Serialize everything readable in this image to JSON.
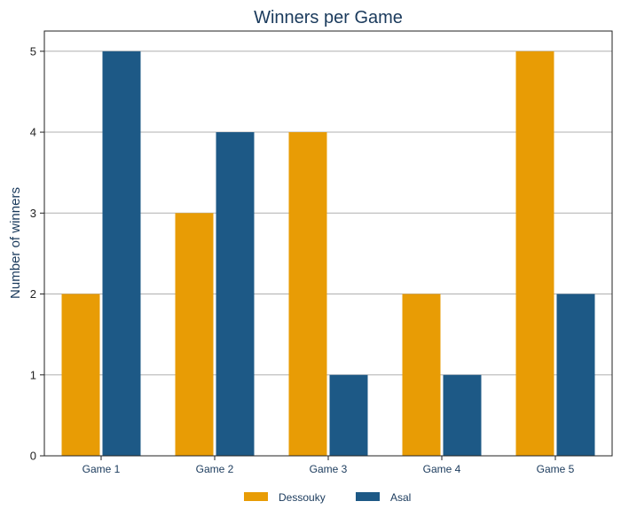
{
  "chart_data": {
    "type": "bar",
    "title": "Winners per Game",
    "xlabel": "",
    "ylabel": "Number of winners",
    "categories": [
      "Game 1",
      "Game 2",
      "Game 3",
      "Game 4",
      "Game 5"
    ],
    "series": [
      {
        "name": "Dessouky",
        "color": "#e89c05",
        "values": [
          2,
          3,
          4,
          2,
          5
        ]
      },
      {
        "name": "Asal",
        "color": "#1d5986",
        "values": [
          5,
          4,
          1,
          1,
          2
        ]
      }
    ],
    "ylim": [
      0,
      5.25
    ],
    "yticks": [
      0,
      1,
      2,
      3,
      4,
      5
    ],
    "grid": true,
    "legend": "bottom-center"
  }
}
